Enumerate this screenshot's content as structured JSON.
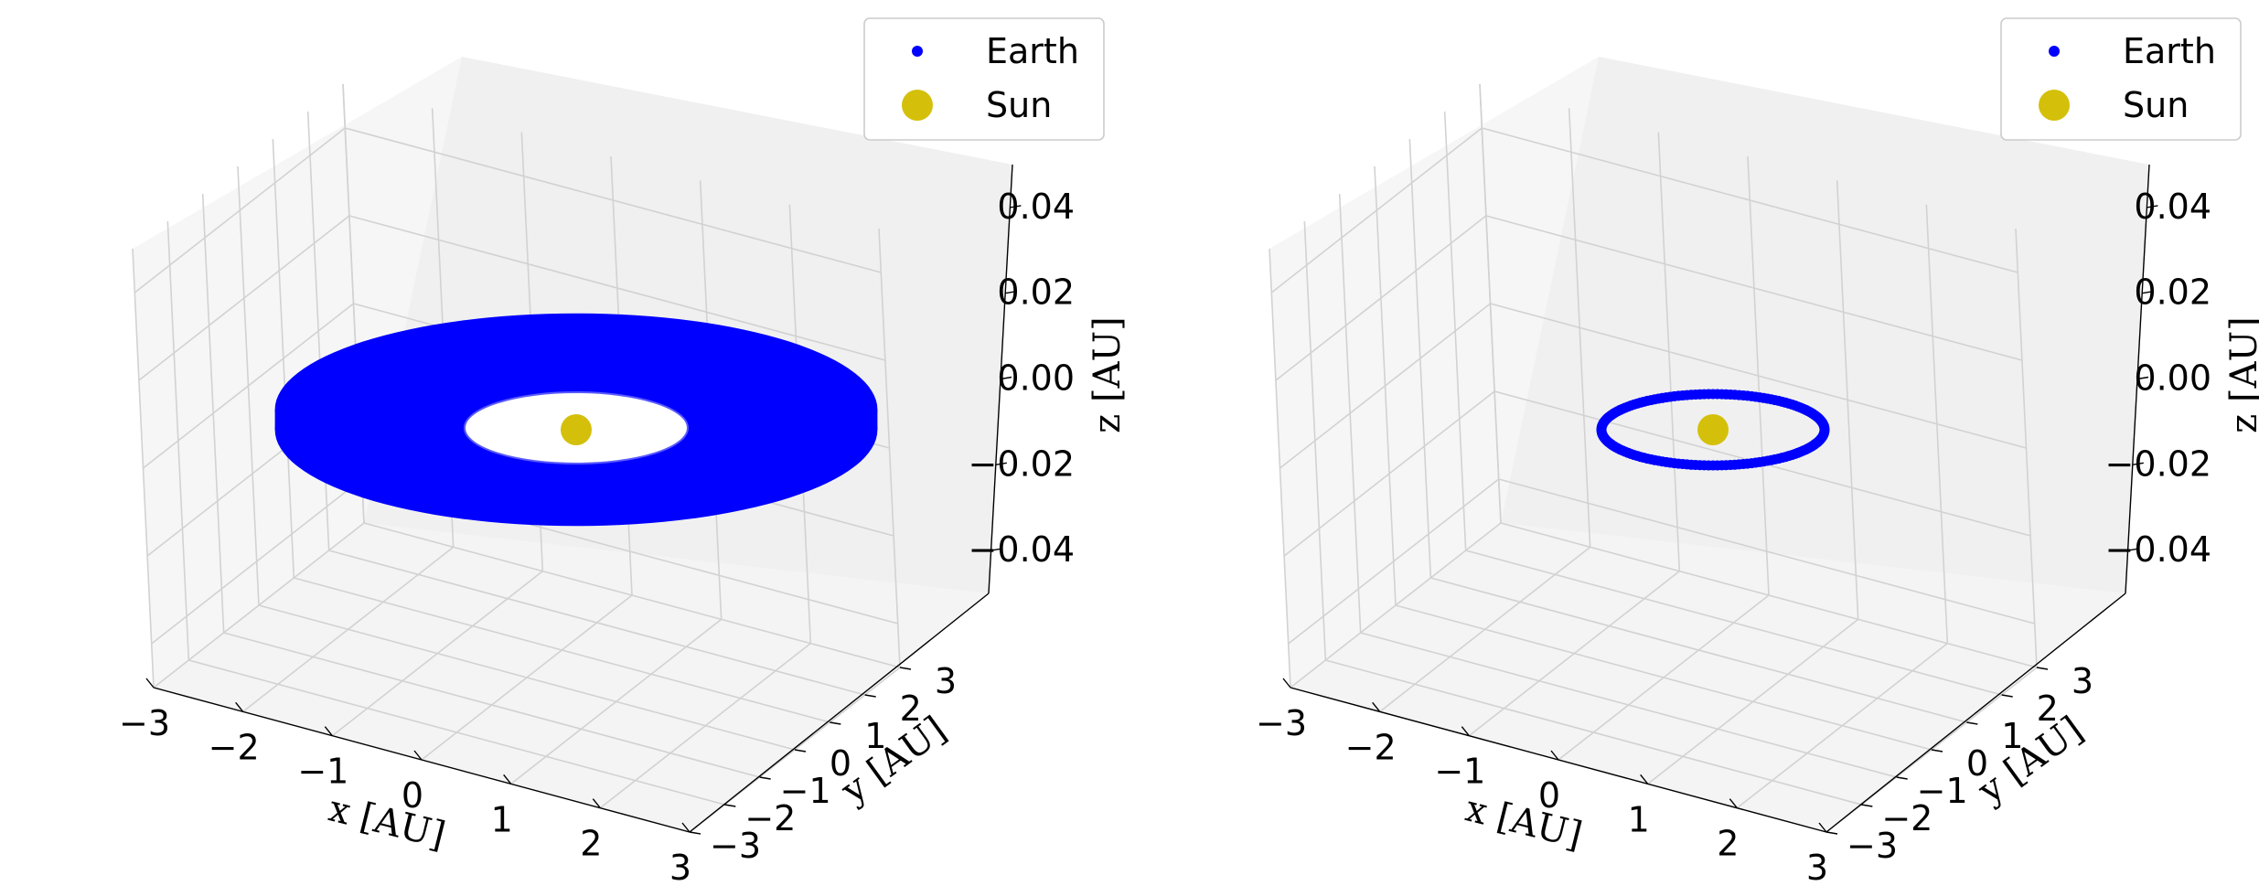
{
  "colors": {
    "earth": "#0000ff",
    "sun": "#d4c00a",
    "pane_floor": "#f4f4f4",
    "pane_left": "#f6f6f6",
    "pane_back": "#f0f0f0",
    "grid": "#d2d2d2"
  },
  "chart_data": [
    {
      "type": "scatter",
      "projection": "3d",
      "title": "",
      "xlabel": "x [AU]",
      "ylabel": "y [AU]",
      "zlabel": "z [AU]",
      "xlim": [
        -3,
        3
      ],
      "ylim": [
        -3,
        3
      ],
      "zlim": [
        -0.05,
        0.05
      ],
      "xticks": [
        "−3",
        "−2",
        "−1",
        "0",
        "1",
        "2",
        "3"
      ],
      "yticks": [
        "−3",
        "−2",
        "−1",
        "0",
        "1",
        "2",
        "3"
      ],
      "zticks": [
        "−0.04",
        "−0.02",
        "0.00",
        "0.02",
        "0.04"
      ],
      "grid": true,
      "legend": {
        "position": "top-right",
        "entries": [
          "Earth",
          "Sun"
        ]
      },
      "series": [
        {
          "name": "Earth",
          "shape": "filled disk (spiral orbit)",
          "r_range": [
            1.0,
            2.7
          ],
          "z": 0.0
        },
        {
          "name": "Sun",
          "x": 0.0,
          "y": 0.0,
          "z": 0.0
        }
      ]
    },
    {
      "type": "scatter",
      "projection": "3d",
      "title": "",
      "xlabel": "x [AU]",
      "ylabel": "y [AU]",
      "zlabel": "z [AU]",
      "xlim": [
        -3,
        3
      ],
      "ylim": [
        -3,
        3
      ],
      "zlim": [
        -0.05,
        0.05
      ],
      "xticks": [
        "−3",
        "−2",
        "−1",
        "0",
        "1",
        "2",
        "3"
      ],
      "yticks": [
        "−3",
        "−2",
        "−1",
        "0",
        "1",
        "2",
        "3"
      ],
      "zticks": [
        "−0.04",
        "−0.02",
        "0.00",
        "0.02",
        "0.04"
      ],
      "grid": true,
      "legend": {
        "position": "top-right",
        "entries": [
          "Earth",
          "Sun"
        ]
      },
      "series": [
        {
          "name": "Earth",
          "shape": "circular orbit",
          "r_range": [
            1.0,
            1.0
          ],
          "z": 0.0
        },
        {
          "name": "Sun",
          "x": 0.0,
          "y": 0.0,
          "z": 0.0
        }
      ]
    }
  ]
}
